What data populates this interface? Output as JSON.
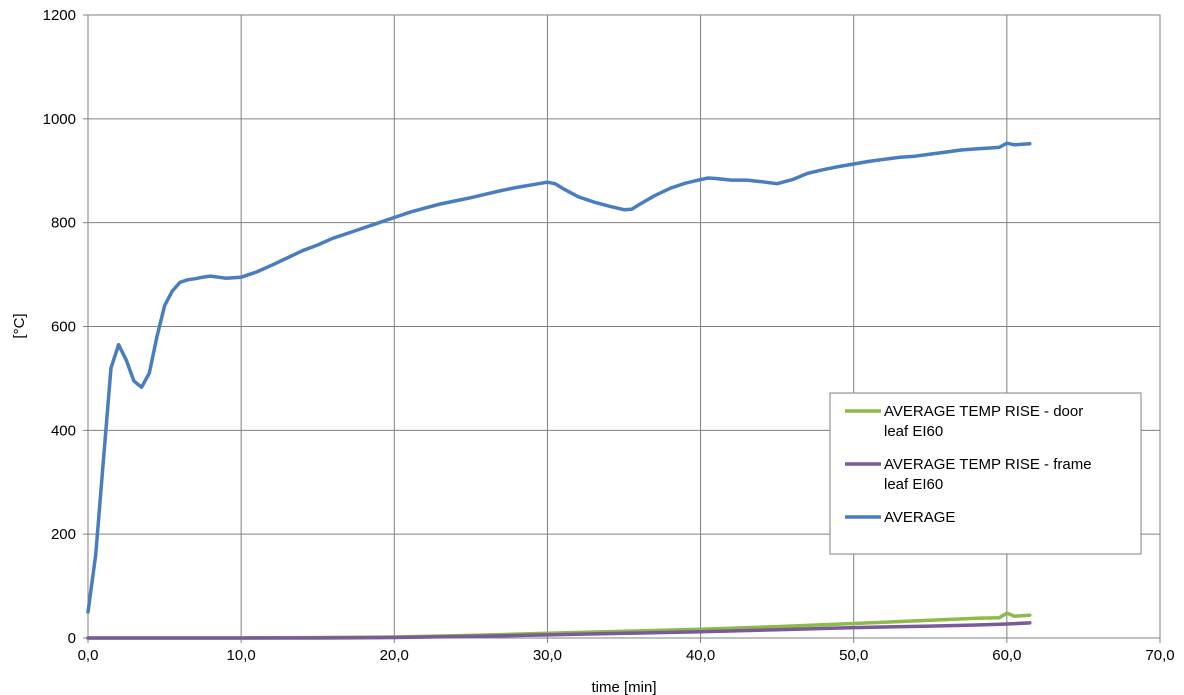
{
  "chart_data": {
    "type": "line",
    "xlabel": "time [min]",
    "ylabel": "[°C]",
    "xlim": [
      0,
      70
    ],
    "ylim": [
      0,
      1200
    ],
    "x_ticks": [
      "0,0",
      "10,0",
      "20,0",
      "30,0",
      "40,0",
      "50,0",
      "60,0",
      "70,0"
    ],
    "y_ticks": [
      "0",
      "200",
      "400",
      "600",
      "800",
      "1000",
      "1200"
    ],
    "grid": true,
    "legend_position": "right",
    "series": [
      {
        "name": "AVERAGE TEMP RISE - door leaf EI60",
        "color": "#8DBB4A",
        "x": [
          0,
          5,
          10,
          15,
          20,
          25,
          30,
          35,
          40,
          45,
          50,
          55,
          58,
          59.5,
          60,
          60.5,
          61.5
        ],
        "y": [
          0,
          0,
          0,
          1,
          2,
          5,
          9,
          13,
          17,
          22,
          28,
          34,
          38,
          39,
          48,
          42,
          44
        ]
      },
      {
        "name": "AVERAGE TEMP RISE - frame leaf EI60",
        "color": "#7B5A9A",
        "x": [
          0,
          5,
          10,
          15,
          20,
          25,
          30,
          35,
          40,
          45,
          50,
          55,
          58,
          60,
          61.5
        ],
        "y": [
          0,
          0,
          0,
          0,
          1,
          3,
          6,
          9,
          12,
          16,
          20,
          23,
          25,
          27,
          29
        ]
      },
      {
        "name": "AVERAGE",
        "color": "#4A7DBF",
        "x": [
          0,
          0.5,
          1,
          1.5,
          2,
          2.5,
          3,
          3.5,
          4,
          4.5,
          5,
          5.5,
          6,
          6.5,
          7,
          7.5,
          8,
          9,
          10,
          11,
          12,
          13,
          14,
          15,
          16,
          17,
          18,
          19,
          20,
          21,
          22,
          23,
          24,
          25,
          26,
          27,
          28,
          29,
          30,
          30.5,
          31,
          32,
          33,
          34,
          35,
          35.5,
          36,
          37,
          38,
          39,
          40,
          40.5,
          41,
          42,
          43,
          44,
          45,
          46,
          47,
          48,
          49,
          50,
          51,
          52,
          53,
          54,
          55,
          56,
          57,
          58,
          59,
          59.5,
          60,
          60.5,
          61,
          61.5
        ],
        "y": [
          50,
          160,
          340,
          520,
          565,
          535,
          495,
          483,
          510,
          580,
          640,
          668,
          685,
          690,
          692,
          695,
          697,
          693,
          695,
          705,
          718,
          732,
          746,
          757,
          770,
          780,
          790,
          800,
          810,
          820,
          828,
          836,
          842,
          848,
          855,
          862,
          868,
          873,
          878,
          875,
          866,
          850,
          840,
          832,
          825,
          826,
          835,
          852,
          866,
          876,
          883,
          886,
          885,
          882,
          882,
          879,
          875,
          883,
          895,
          902,
          908,
          913,
          918,
          922,
          926,
          928,
          932,
          936,
          940,
          942,
          944,
          945,
          953,
          950,
          951,
          952
        ]
      }
    ]
  }
}
